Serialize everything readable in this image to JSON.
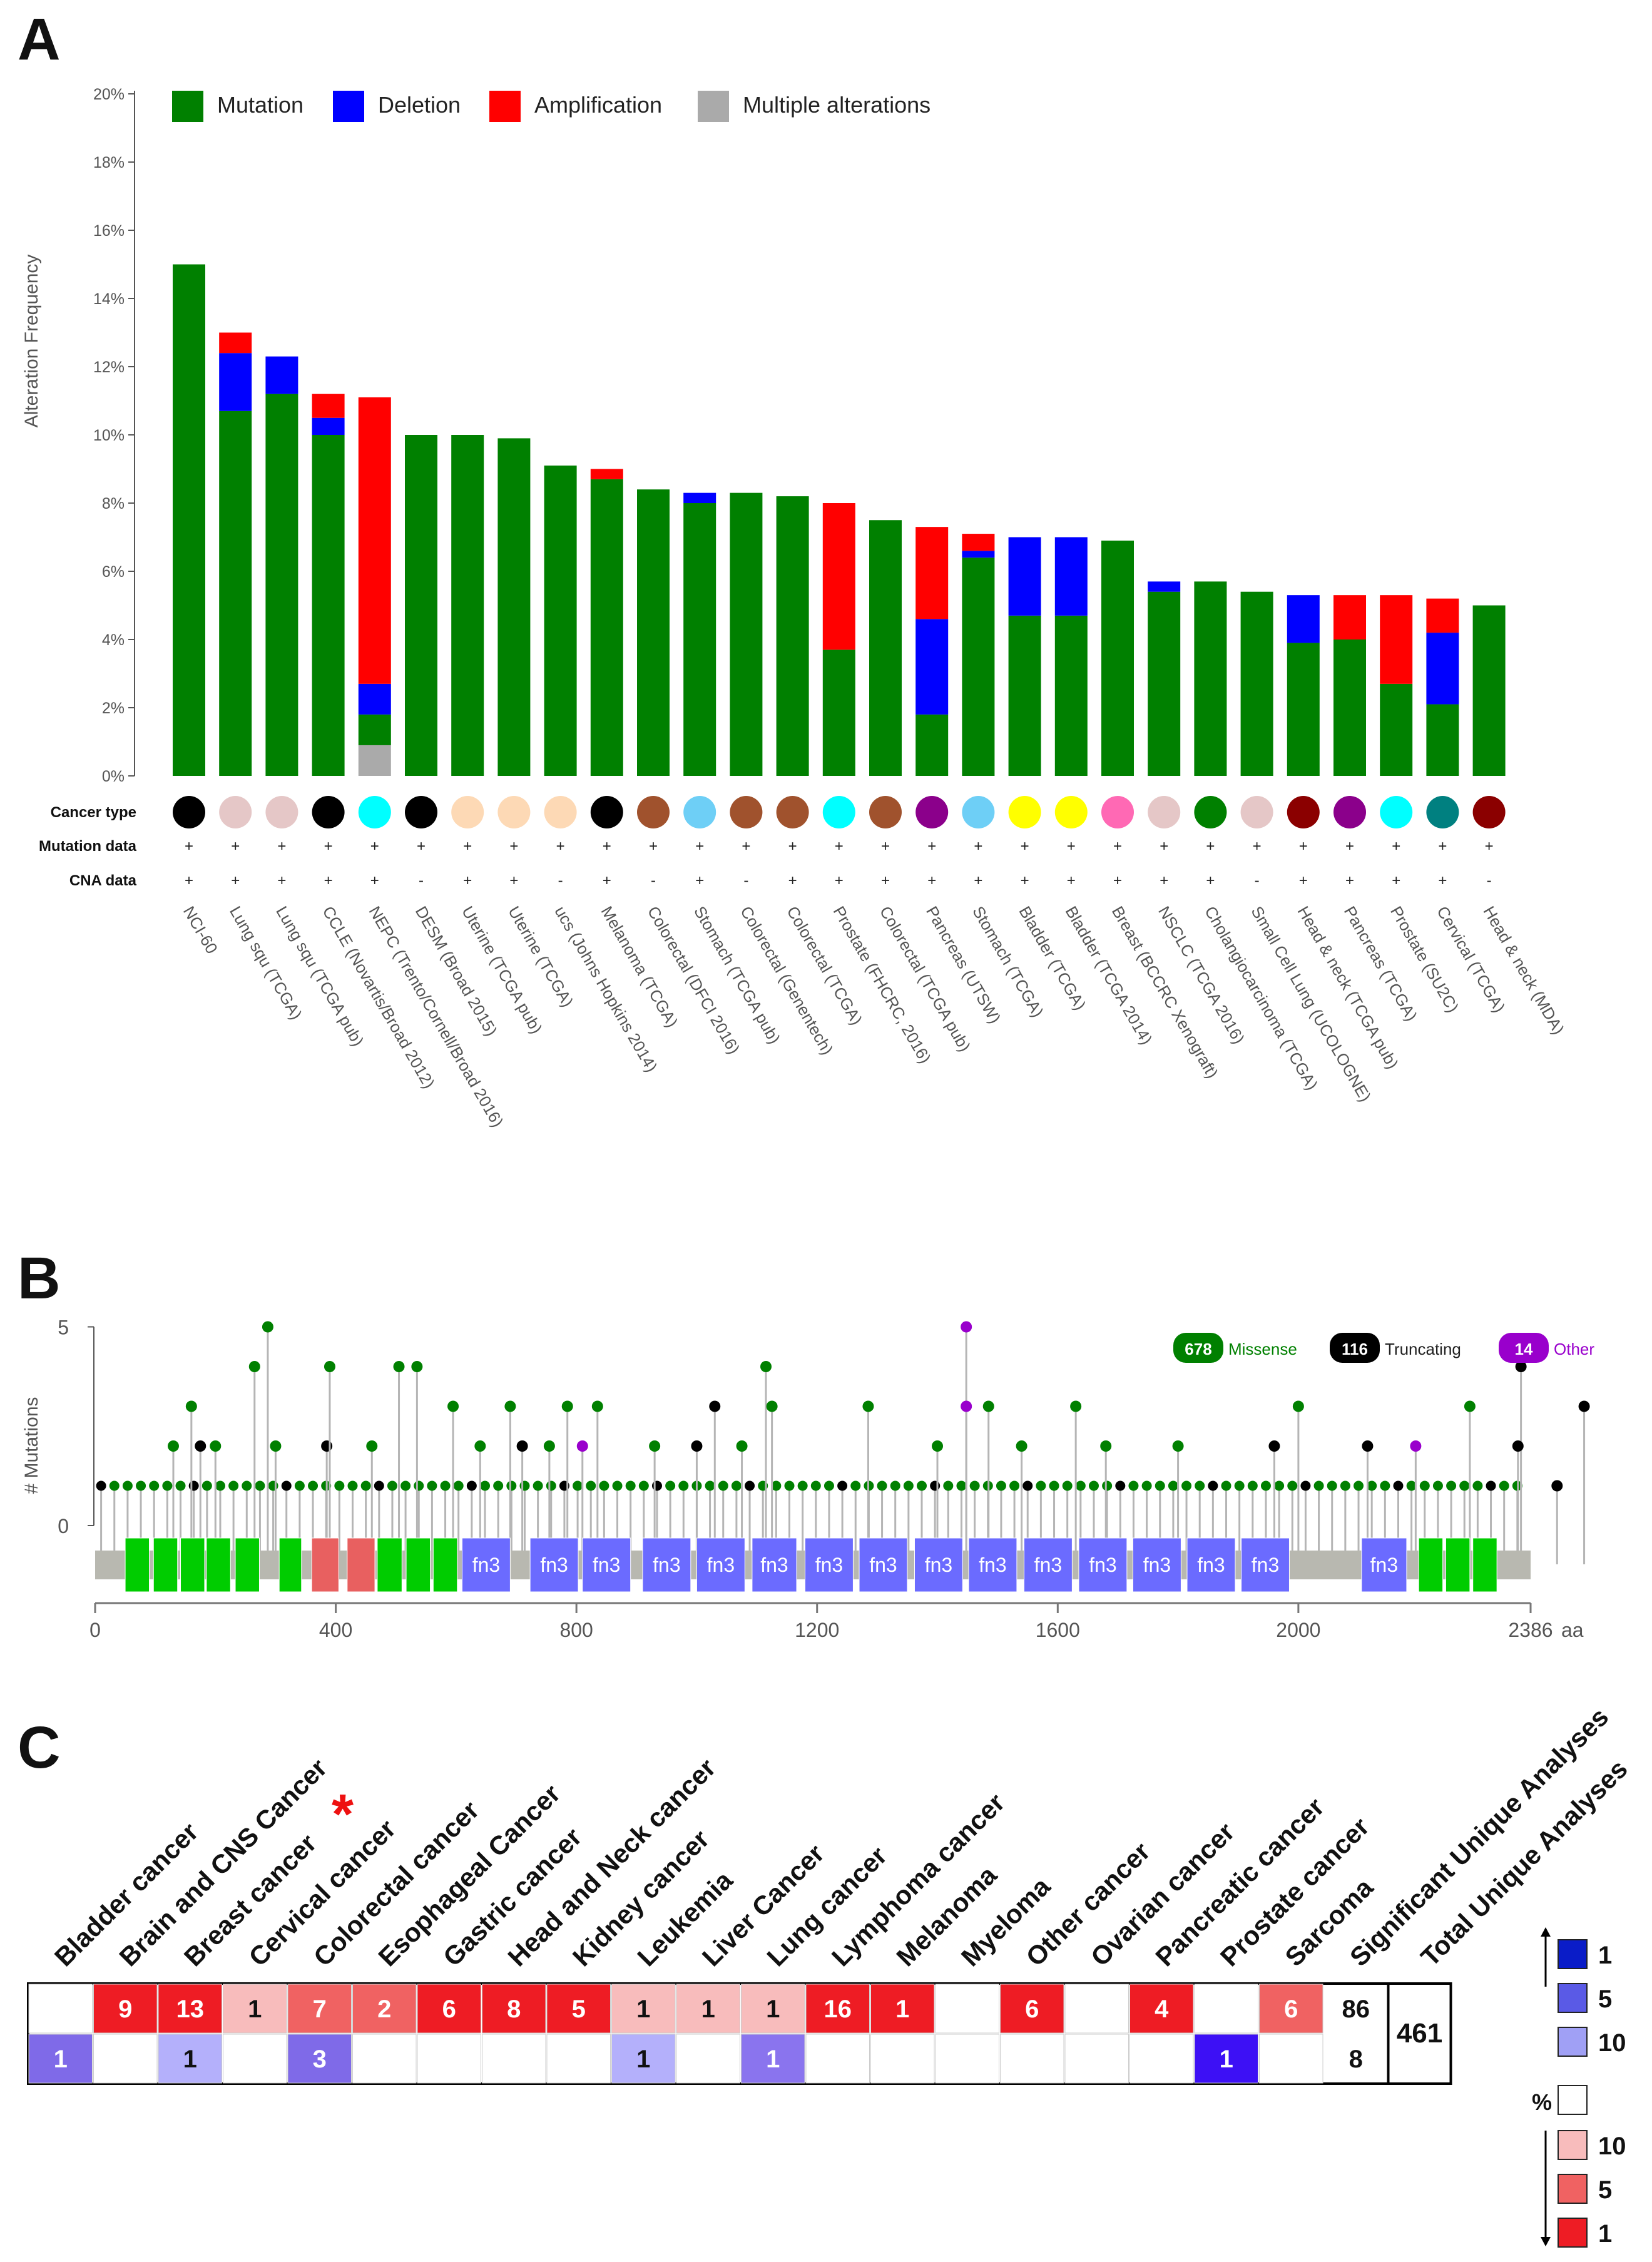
{
  "panels": {
    "a": "A",
    "b": "B",
    "c": "C"
  },
  "chart_data": [
    {
      "type": "bar",
      "stacked": true,
      "ylabel": "Alteration Frequency",
      "ylim": [
        0,
        20
      ],
      "yticks": [
        "0%",
        "2%",
        "4%",
        "6%",
        "8%",
        "10%",
        "12%",
        "14%",
        "16%",
        "18%",
        "20%"
      ],
      "legend": {
        "position": "top",
        "entries": [
          {
            "name": "Mutation",
            "color": "#008000"
          },
          {
            "name": "Deletion",
            "color": "#0000ff"
          },
          {
            "name": "Amplification",
            "color": "#ff0000"
          },
          {
            "name": "Multiple alterations",
            "color": "#aaaaaa"
          }
        ]
      },
      "categories": [
        "NCI-60",
        "Lung squ (TCGA)",
        "Lung squ (TCGA pub)",
        "CCLE (Novartis/Broad 2012)",
        "NEPC (Trento/Cornell/Broad 2016)",
        "DESM (Broad 2015)",
        "Uterine (TCGA pub)",
        "Uterine (TCGA)",
        "ucs (Johns Hopkins 2014)",
        "Melanoma (TCGA)",
        "Colorectal (DFCI 2016)",
        "Stomach (TCGA pub)",
        "Colorectal (Genentech)",
        "Colorectal (TCGA)",
        "Prostate (FHCRC, 2016)",
        "Colorectal (TCGA pub)",
        "Pancreas (UTSW)",
        "Stomach (TCGA)",
        "Bladder (TCGA)",
        "Bladder (TCGA 2014)",
        "Breast (BCCRC Xenograft)",
        "NSCLC (TCGA 2016)",
        "Cholangiocarcinoma (TCGA)",
        "Small Cell Lung (UCOLOGNE)",
        "Head & neck (TCGA pub)",
        "Pancreas (TCGA)",
        "Prostate (SU2C)",
        "Cervical (TCGA)",
        "Head & neck (MDA)"
      ],
      "series": [
        {
          "name": "Multiple alterations",
          "values": [
            0,
            0,
            0,
            0,
            0.9,
            0,
            0,
            0,
            0,
            0,
            0,
            0,
            0,
            0,
            0,
            0,
            0,
            0,
            0,
            0,
            0,
            0,
            0,
            0,
            0,
            0,
            0,
            0,
            0
          ]
        },
        {
          "name": "Mutation",
          "values": [
            15.0,
            10.7,
            11.2,
            10.0,
            0.9,
            10.0,
            10.0,
            9.9,
            9.1,
            8.7,
            8.4,
            8.0,
            8.3,
            8.2,
            3.7,
            7.5,
            1.8,
            6.4,
            4.7,
            4.7,
            6.9,
            5.4,
            5.7,
            5.4,
            3.9,
            4.0,
            2.7,
            2.1,
            5.0
          ]
        },
        {
          "name": "Deletion",
          "values": [
            0,
            1.7,
            1.1,
            0.5,
            0.9,
            0,
            0,
            0,
            0,
            0,
            0,
            0.3,
            0,
            0,
            0,
            0,
            2.8,
            0.2,
            2.3,
            2.3,
            0,
            0.3,
            0,
            0,
            1.4,
            0,
            0,
            2.1,
            0
          ]
        },
        {
          "name": "Amplification",
          "values": [
            0,
            0.6,
            0,
            0.7,
            8.4,
            0,
            0,
            0,
            0,
            0.3,
            0,
            0,
            0,
            0,
            4.3,
            0,
            2.7,
            0.5,
            0,
            0,
            0,
            0,
            0,
            0,
            0,
            1.3,
            2.6,
            1.0,
            0
          ]
        }
      ],
      "track_labels": [
        "Cancer type",
        "Mutation data",
        "CNA data"
      ],
      "cancer_type_colors": [
        "#000000",
        "#e5c7c7",
        "#e5c7c7",
        "#000000",
        "#00ffff",
        "#000000",
        "#fdd9b5",
        "#fdd9b5",
        "#fdd9b5",
        "#000000",
        "#a0522d",
        "#6ecff6",
        "#a0522d",
        "#a0522d",
        "#00ffff",
        "#a0522d",
        "#8b008b",
        "#6ecff6",
        "#ffff00",
        "#ffff00",
        "#ff69b4",
        "#e5c7c7",
        "#008000",
        "#e5c7c7",
        "#8b0000",
        "#8b008b",
        "#00ffff",
        "#008080",
        "#8b0000"
      ],
      "mutation_data": [
        "+",
        "+",
        "+",
        "+",
        "+",
        "+",
        "+",
        "+",
        "+",
        "+",
        "+",
        "+",
        "+",
        "+",
        "+",
        "+",
        "+",
        "+",
        "+",
        "+",
        "+",
        "+",
        "+",
        "+",
        "+",
        "+",
        "+",
        "+",
        "+"
      ],
      "cna_data": [
        "+",
        "+",
        "+",
        "+",
        "+",
        "-",
        "+",
        "+",
        "-",
        "+",
        "-",
        "+",
        "-",
        "+",
        "+",
        "+",
        "+",
        "+",
        "+",
        "+",
        "+",
        "+",
        "+",
        "-",
        "+",
        "+",
        "+",
        "+",
        "-"
      ]
    },
    {
      "type": "scatter",
      "subtype": "lollipop",
      "ylabel": "# Mutations",
      "ylim": [
        0,
        5
      ],
      "yticks": [
        "0",
        "5"
      ],
      "xlim": [
        0,
        2386
      ],
      "xticks": [
        "0",
        "400",
        "800",
        "1200",
        "1600",
        "2000",
        "2386"
      ],
      "x_unit": "aa",
      "legend": [
        {
          "count": "678",
          "name": "Missense",
          "color": "#008000"
        },
        {
          "count": "116",
          "name": "Truncating",
          "color": "#000000"
        },
        {
          "count": "14",
          "name": "Other",
          "color": "#9900cc"
        }
      ],
      "domains": [
        {
          "start": 50,
          "end": 90,
          "label": "",
          "color": "#00cc00"
        },
        {
          "start": 97,
          "end": 137,
          "label": "",
          "color": "#00cc00"
        },
        {
          "start": 142,
          "end": 182,
          "label": "",
          "color": "#00cc00"
        },
        {
          "start": 185,
          "end": 225,
          "label": "",
          "color": "#00cc00"
        },
        {
          "start": 233,
          "end": 273,
          "label": "",
          "color": "#00cc00"
        },
        {
          "start": 306,
          "end": 343,
          "label": "",
          "color": "#00cc00"
        },
        {
          "start": 360,
          "end": 405,
          "label": "",
          "color": "#e86060"
        },
        {
          "start": 419,
          "end": 465,
          "label": "",
          "color": "#e86060"
        },
        {
          "start": 469,
          "end": 510,
          "label": "",
          "color": "#00cc00"
        },
        {
          "start": 517,
          "end": 557,
          "label": "",
          "color": "#00cc00"
        },
        {
          "start": 562,
          "end": 602,
          "label": "",
          "color": "#00cc00"
        },
        {
          "start": 610,
          "end": 690,
          "label": "fn3",
          "color": "#6b6bff"
        },
        {
          "start": 723,
          "end": 803,
          "label": "fn3",
          "color": "#6b6bff"
        },
        {
          "start": 810,
          "end": 890,
          "label": "fn3",
          "color": "#6b6bff"
        },
        {
          "start": 910,
          "end": 990,
          "label": "fn3",
          "color": "#6b6bff"
        },
        {
          "start": 1000,
          "end": 1080,
          "label": "fn3",
          "color": "#6b6bff"
        },
        {
          "start": 1092,
          "end": 1166,
          "label": "fn3",
          "color": "#6b6bff"
        },
        {
          "start": 1180,
          "end": 1260,
          "label": "fn3",
          "color": "#6b6bff"
        },
        {
          "start": 1270,
          "end": 1350,
          "label": "fn3",
          "color": "#6b6bff"
        },
        {
          "start": 1362,
          "end": 1442,
          "label": "fn3",
          "color": "#6b6bff"
        },
        {
          "start": 1452,
          "end": 1532,
          "label": "fn3",
          "color": "#6b6bff"
        },
        {
          "start": 1544,
          "end": 1624,
          "label": "fn3",
          "color": "#6b6bff"
        },
        {
          "start": 1635,
          "end": 1715,
          "label": "fn3",
          "color": "#6b6bff"
        },
        {
          "start": 1725,
          "end": 1805,
          "label": "fn3",
          "color": "#6b6bff"
        },
        {
          "start": 1815,
          "end": 1895,
          "label": "fn3",
          "color": "#6b6bff"
        },
        {
          "start": 1905,
          "end": 1985,
          "label": "fn3",
          "color": "#6b6bff"
        },
        {
          "start": 2105,
          "end": 2180,
          "label": "fn3",
          "color": "#6b6bff"
        },
        {
          "start": 2200,
          "end": 2240,
          "label": "",
          "color": "#00cc00"
        },
        {
          "start": 2245,
          "end": 2285,
          "label": "",
          "color": "#00cc00"
        },
        {
          "start": 2290,
          "end": 2330,
          "label": "",
          "color": "#00cc00"
        }
      ],
      "mutations": [
        {
          "x": 130,
          "y": 2,
          "type": "missense"
        },
        {
          "x": 160,
          "y": 3,
          "type": "missense"
        },
        {
          "x": 175,
          "y": 2,
          "type": "truncating"
        },
        {
          "x": 200,
          "y": 2,
          "type": "missense"
        },
        {
          "x": 265,
          "y": 4,
          "type": "missense"
        },
        {
          "x": 287,
          "y": 5,
          "type": "missense"
        },
        {
          "x": 300,
          "y": 2,
          "type": "missense"
        },
        {
          "x": 385,
          "y": 2,
          "type": "truncating"
        },
        {
          "x": 390,
          "y": 4,
          "type": "missense"
        },
        {
          "x": 460,
          "y": 2,
          "type": "missense"
        },
        {
          "x": 505,
          "y": 4,
          "type": "missense"
        },
        {
          "x": 535,
          "y": 4,
          "type": "missense"
        },
        {
          "x": 595,
          "y": 3,
          "type": "missense"
        },
        {
          "x": 640,
          "y": 2,
          "type": "missense"
        },
        {
          "x": 690,
          "y": 3,
          "type": "missense"
        },
        {
          "x": 710,
          "y": 2,
          "type": "truncating"
        },
        {
          "x": 755,
          "y": 2,
          "type": "missense"
        },
        {
          "x": 785,
          "y": 3,
          "type": "missense"
        },
        {
          "x": 810,
          "y": 2,
          "type": "other"
        },
        {
          "x": 835,
          "y": 3,
          "type": "missense"
        },
        {
          "x": 930,
          "y": 2,
          "type": "missense"
        },
        {
          "x": 1000,
          "y": 2,
          "type": "truncating"
        },
        {
          "x": 1030,
          "y": 3,
          "type": "truncating"
        },
        {
          "x": 1075,
          "y": 2,
          "type": "missense"
        },
        {
          "x": 1115,
          "y": 4,
          "type": "missense"
        },
        {
          "x": 1125,
          "y": 3,
          "type": "missense"
        },
        {
          "x": 1285,
          "y": 3,
          "type": "missense"
        },
        {
          "x": 1400,
          "y": 2,
          "type": "missense"
        },
        {
          "x": 1448,
          "y": 5,
          "type": "other"
        },
        {
          "x": 1448,
          "y": 3,
          "type": "other"
        },
        {
          "x": 1485,
          "y": 3,
          "type": "missense"
        },
        {
          "x": 1540,
          "y": 2,
          "type": "missense"
        },
        {
          "x": 1630,
          "y": 3,
          "type": "missense"
        },
        {
          "x": 1680,
          "y": 2,
          "type": "missense"
        },
        {
          "x": 1800,
          "y": 2,
          "type": "missense"
        },
        {
          "x": 2000,
          "y": 3,
          "type": "missense"
        },
        {
          "x": 1960,
          "y": 2,
          "type": "truncating"
        },
        {
          "x": 2115,
          "y": 2,
          "type": "truncating"
        },
        {
          "x": 2195,
          "y": 2,
          "type": "other"
        },
        {
          "x": 2285,
          "y": 3,
          "type": "missense"
        },
        {
          "x": 2370,
          "y": 4,
          "type": "truncating"
        },
        {
          "x": 2365,
          "y": 2,
          "type": "truncating"
        },
        {
          "x": 2430,
          "y": 1,
          "type": "truncating"
        },
        {
          "x": 2475,
          "y": 3,
          "type": "truncating"
        }
      ]
    },
    {
      "type": "table",
      "columns": [
        "Bladder cancer",
        "Brain and CNS Cancer",
        "Breast cancer",
        "Cervical cancer",
        "Colorectal cancer",
        "Esophageal Cancer",
        "Gastric cancer",
        "Head and Neck cancer",
        "Kidney cancer",
        "Leukemia",
        "Liver Cancer",
        "Lung cancer",
        "Lymphoma cancer",
        "Melanoma",
        "Myeloma",
        "Other cancer",
        "Ovarian cancer",
        "Pancreatic cancer",
        "Prostate cancer",
        "Sarcoma",
        "Significant Unique Analyses",
        "Total Unique Analyses"
      ],
      "highlight_marker": "*",
      "highlight_column": "Brain and CNS Cancer",
      "up_row": [
        {
          "value": "",
          "color": "#ffffff"
        },
        {
          "value": "9",
          "color": "#ee1c24"
        },
        {
          "value": "13",
          "color": "#ee1c24"
        },
        {
          "value": "1",
          "color": "#f8bcbc"
        },
        {
          "value": "7",
          "color": "#f06262"
        },
        {
          "value": "2",
          "color": "#f06262"
        },
        {
          "value": "6",
          "color": "#ee1c24"
        },
        {
          "value": "8",
          "color": "#ee1c24"
        },
        {
          "value": "5",
          "color": "#ee1c24"
        },
        {
          "value": "1",
          "color": "#f8bcbc"
        },
        {
          "value": "1",
          "color": "#f8bcbc"
        },
        {
          "value": "1",
          "color": "#f8bcbc"
        },
        {
          "value": "16",
          "color": "#ee1c24"
        },
        {
          "value": "1",
          "color": "#ee1c24"
        },
        {
          "value": "",
          "color": "#ffffff"
        },
        {
          "value": "6",
          "color": "#ee1c24"
        },
        {
          "value": "",
          "color": "#ffffff"
        },
        {
          "value": "4",
          "color": "#ee1c24"
        },
        {
          "value": "",
          "color": "#ffffff"
        },
        {
          "value": "6",
          "color": "#f06262"
        }
      ],
      "down_row": [
        {
          "value": "1",
          "color": "#7f6ae8"
        },
        {
          "value": "",
          "color": "#ffffff"
        },
        {
          "value": "1",
          "color": "#b4b0fb"
        },
        {
          "value": "",
          "color": "#ffffff"
        },
        {
          "value": "3",
          "color": "#7f6ae8"
        },
        {
          "value": "",
          "color": "#ffffff"
        },
        {
          "value": "",
          "color": "#ffffff"
        },
        {
          "value": "",
          "color": "#ffffff"
        },
        {
          "value": "",
          "color": "#ffffff"
        },
        {
          "value": "1",
          "color": "#b4b0fb"
        },
        {
          "value": "",
          "color": "#ffffff"
        },
        {
          "value": "1",
          "color": "#8a74ee"
        },
        {
          "value": "",
          "color": "#ffffff"
        },
        {
          "value": "",
          "color": "#ffffff"
        },
        {
          "value": "",
          "color": "#ffffff"
        },
        {
          "value": "",
          "color": "#ffffff"
        },
        {
          "value": "",
          "color": "#ffffff"
        },
        {
          "value": "",
          "color": "#ffffff"
        },
        {
          "value": "1",
          "color": "#3d10f5"
        },
        {
          "value": "",
          "color": "#ffffff"
        }
      ],
      "significant_up": "86",
      "significant_down": "8",
      "total": "461",
      "scale": {
        "blue": [
          {
            "label": "1",
            "color": "#0a1cc8"
          },
          {
            "label": "5",
            "color": "#5a5ae6"
          },
          {
            "label": "10",
            "color": "#a0a0f5"
          }
        ],
        "percent_label": "%",
        "red": [
          {
            "label": "10",
            "color": "#f8bcbc"
          },
          {
            "label": "5",
            "color": "#f06262"
          },
          {
            "label": "1",
            "color": "#ee1c24"
          }
        ]
      }
    }
  ]
}
